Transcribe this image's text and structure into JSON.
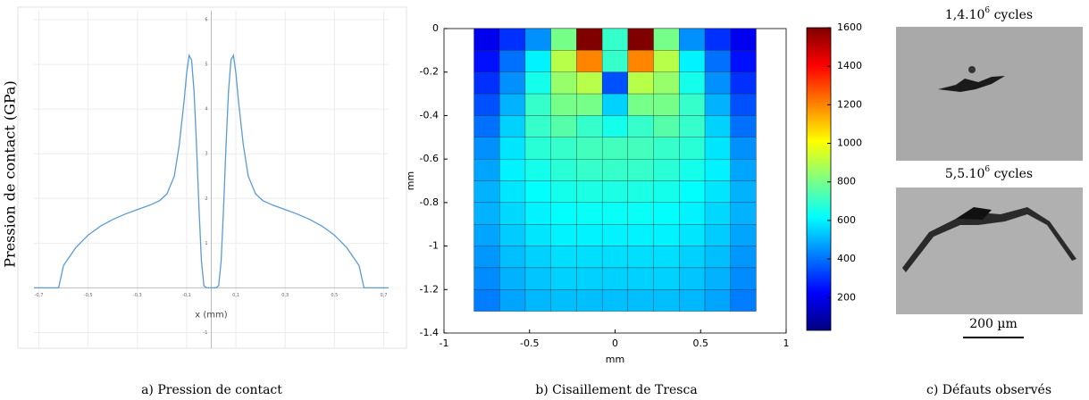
{
  "chart_data": [
    {
      "type": "line",
      "y_label": "Pression de contact (GPa)",
      "x_label": "x (mm)",
      "caption": "a) Pression de contact",
      "color": "#5b9bd5",
      "grid": true,
      "x": [
        -0.72,
        -0.62,
        -0.6,
        -0.55,
        -0.5,
        -0.45,
        -0.4,
        -0.35,
        -0.3,
        -0.25,
        -0.21,
        -0.18,
        -0.15,
        -0.13,
        -0.11,
        -0.1,
        -0.09,
        -0.08,
        -0.07,
        -0.06,
        -0.05,
        -0.04,
        -0.03,
        -0.02,
        0.02,
        0.03,
        0.04,
        0.05,
        0.06,
        0.07,
        0.08,
        0.09,
        0.1,
        0.11,
        0.13,
        0.15,
        0.18,
        0.21,
        0.25,
        0.3,
        0.35,
        0.4,
        0.45,
        0.5,
        0.55,
        0.6,
        0.62,
        0.72
      ],
      "values": [
        0,
        0,
        0.5,
        0.9,
        1.18,
        1.38,
        1.53,
        1.65,
        1.75,
        1.85,
        1.95,
        2.1,
        2.5,
        3.2,
        4.2,
        4.8,
        5.2,
        5.1,
        4.4,
        3.2,
        1.8,
        0.6,
        0.05,
        0,
        0,
        0.05,
        0.6,
        1.8,
        3.2,
        4.4,
        5.1,
        5.2,
        4.8,
        4.2,
        3.2,
        2.5,
        2.1,
        1.95,
        1.85,
        1.75,
        1.65,
        1.53,
        1.38,
        1.18,
        0.9,
        0.5,
        0,
        0
      ],
      "xlim": [
        -0.72,
        0.72
      ],
      "xticks": [
        {
          "value": -0.7,
          "label": "-0,7"
        },
        {
          "value": -0.5,
          "label": "-0,5"
        },
        {
          "value": -0.3,
          "label": "-0,3"
        },
        {
          "value": -0.1,
          "label": "-0,1"
        },
        {
          "value": 0.1,
          "label": "0,1"
        },
        {
          "value": 0.3,
          "label": "0,3"
        },
        {
          "value": 0.5,
          "label": "0,5"
        },
        {
          "value": 0.7,
          "label": "0,7"
        }
      ],
      "ylim": [
        -1.35,
        6.2
      ],
      "yticks": [
        -1,
        1,
        2,
        3,
        4,
        5,
        6
      ]
    },
    {
      "type": "heatmap",
      "x_label": "mm",
      "y_label": "mm",
      "caption": "b) Cisaillement de Tresca",
      "colormap": "jet",
      "x": [
        -0.75,
        -0.6,
        -0.45,
        -0.3,
        -0.15,
        0,
        0.15,
        0.3,
        0.45,
        0.6,
        0.75
      ],
      "y": [
        -0.05,
        -0.15,
        -0.25,
        -0.35,
        -0.45,
        -0.55,
        -0.65,
        -0.75,
        -0.85,
        -0.95,
        -1.05,
        -1.15,
        -1.25
      ],
      "z": [
        [
          200,
          300,
          450,
          800,
          1600,
          700,
          1600,
          800,
          450,
          300,
          200
        ],
        [
          250,
          400,
          600,
          900,
          1200,
          700,
          1200,
          900,
          600,
          400,
          250
        ],
        [
          300,
          450,
          650,
          850,
          900,
          350,
          900,
          850,
          650,
          450,
          300
        ],
        [
          350,
          500,
          700,
          800,
          800,
          550,
          800,
          800,
          700,
          500,
          350
        ],
        [
          400,
          550,
          700,
          750,
          700,
          650,
          700,
          750,
          700,
          550,
          400
        ],
        [
          450,
          580,
          680,
          700,
          720,
          720,
          720,
          700,
          680,
          580,
          450
        ],
        [
          480,
          600,
          650,
          680,
          700,
          700,
          700,
          680,
          650,
          600,
          480
        ],
        [
          500,
          580,
          620,
          650,
          660,
          660,
          660,
          650,
          620,
          580,
          500
        ],
        [
          500,
          560,
          600,
          620,
          630,
          630,
          630,
          620,
          600,
          560,
          500
        ],
        [
          480,
          540,
          580,
          600,
          600,
          600,
          600,
          600,
          580,
          540,
          480
        ],
        [
          460,
          520,
          550,
          570,
          570,
          570,
          570,
          570,
          550,
          520,
          460
        ],
        [
          440,
          500,
          530,
          550,
          550,
          550,
          550,
          550,
          530,
          500,
          440
        ],
        [
          420,
          480,
          510,
          520,
          520,
          520,
          520,
          520,
          510,
          480,
          420
        ]
      ],
      "xlim": [
        -1,
        1
      ],
      "xticks": [
        -1,
        -0.5,
        0,
        0.5,
        1
      ],
      "ylim": [
        -1.4,
        0
      ],
      "yticks": [
        0,
        -0.2,
        -0.4,
        -0.6,
        -0.8,
        -1,
        -1.2,
        -1.4
      ],
      "clim": [
        30,
        1600
      ],
      "colorbar_ticks": [
        200,
        400,
        600,
        800,
        1000,
        1200,
        1400,
        1600
      ]
    }
  ],
  "panel_c": {
    "images": [
      {
        "title_base": "1,4.10",
        "title_exponent": "6",
        "title_suffix": " cycles"
      },
      {
        "title_base": "5,5.10",
        "title_exponent": "6",
        "title_suffix": " cycles"
      }
    ],
    "scale_bar": "200 µm",
    "caption": "c) Défauts observés"
  }
}
